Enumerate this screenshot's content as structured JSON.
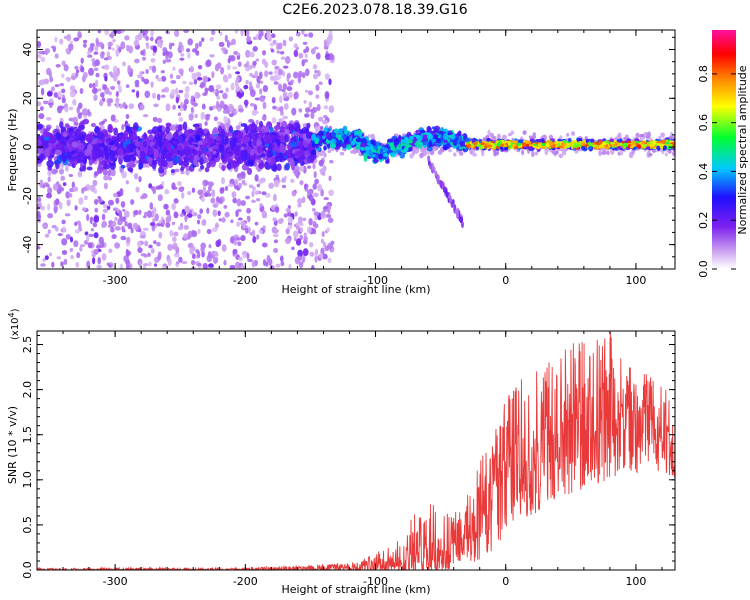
{
  "title": "C2E6.2023.078.18.39.G16",
  "chart_data": [
    {
      "type": "heatmap",
      "xlabel": "Height of straight line (km)",
      "ylabel": "Frequency (Hz)",
      "xlim": [
        -360,
        130
      ],
      "ylim": [
        -50,
        48
      ],
      "x_ticks": [
        -300,
        -200,
        -100,
        0,
        100
      ],
      "y_ticks": [
        -40,
        -20,
        0,
        20,
        40
      ],
      "colorbar": {
        "label": "Normalized spectral amplitude",
        "range": [
          0,
          0.98
        ],
        "ticks": [
          0.0,
          0.2,
          0.4,
          0.6,
          0.8
        ],
        "colormap": [
          "#ffffff",
          "#c89af0",
          "#7a1ff0",
          "#2010ff",
          "#00c8ff",
          "#00ff30",
          "#ffff00",
          "#ff8000",
          "#ff0000",
          "#ff10a0"
        ]
      },
      "regions": [
        {
          "x_range": [
            -360,
            -148
          ],
          "freq_center": 0,
          "freq_halfwidth": 7,
          "amplitude": 0.15,
          "scatter_freq_range": [
            -50,
            48
          ]
        },
        {
          "x_range": [
            -148,
            -30
          ],
          "freq_center": 2,
          "freq_halfwidth": 5,
          "amplitude": 0.35
        },
        {
          "x_range": [
            -30,
            130
          ],
          "freq_center": 1,
          "freq_halfwidth": 2,
          "amplitude": 0.8
        }
      ],
      "tail": {
        "x_range": [
          -60,
          -33
        ],
        "freq_range": [
          -5,
          -31
        ]
      }
    },
    {
      "type": "line",
      "xlabel": "Height of straight line (km)",
      "ylabel": "SNR (10 * v/v)",
      "scale_label": "(x10",
      "scale_exponent": "4",
      "scale_suffix": ")",
      "xlim": [
        -360,
        130
      ],
      "ylim": [
        0,
        2.65
      ],
      "x_ticks": [
        -300,
        -200,
        -100,
        0,
        100
      ],
      "y_ticks": [
        0.0,
        0.5,
        1.0,
        1.5,
        2.0,
        2.5
      ],
      "y_tick_labels": [
        "0.0",
        "0.5",
        "1.0",
        "1.5",
        "2.0",
        "2.5"
      ],
      "color": "#e83a3a",
      "envelope": {
        "x": [
          -360,
          -200,
          -150,
          -120,
          -110,
          -100,
          -90,
          -80,
          -70,
          -60,
          -50,
          -40,
          -30,
          -20,
          -10,
          0,
          10,
          20,
          30,
          40,
          50,
          60,
          70,
          80,
          90,
          100,
          110,
          120,
          130
        ],
        "min": [
          0,
          0,
          0,
          0,
          0,
          0,
          0,
          0,
          0,
          0,
          0,
          0.02,
          0.05,
          0.1,
          0.2,
          0.4,
          0.55,
          0.6,
          0.7,
          0.8,
          0.85,
          0.9,
          0.95,
          1.0,
          1.05,
          1.05,
          1.1,
          1.1,
          1.0
        ],
        "max": [
          0.02,
          0.03,
          0.05,
          0.08,
          0.12,
          0.2,
          0.3,
          0.42,
          0.62,
          0.75,
          0.72,
          0.68,
          0.9,
          1.2,
          1.6,
          1.9,
          2.1,
          2.3,
          2.4,
          2.5,
          2.6,
          2.55,
          2.6,
          2.65,
          2.4,
          2.2,
          2.2,
          2.1,
          2.0
        ]
      }
    }
  ]
}
